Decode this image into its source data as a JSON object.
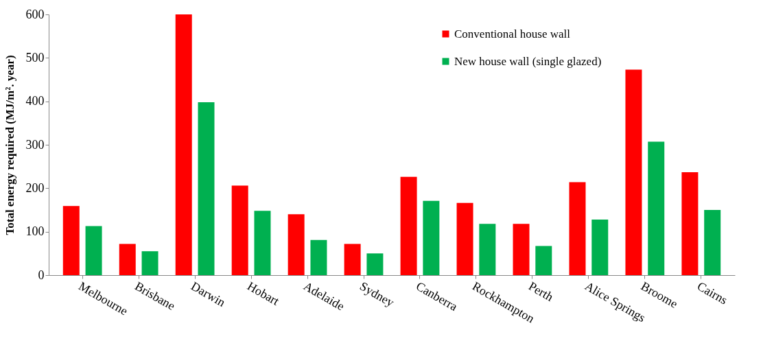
{
  "chart_data": {
    "type": "bar",
    "ylabel": "Total energy required (MJ/m². year)",
    "categories": [
      "Melbourne",
      "Brisbane",
      "Darwin",
      "Hobart",
      "Adelaide",
      "Sydney",
      "Canberra",
      "Rockhampton",
      "Perth",
      "Alice Springs",
      "Broome",
      "Cairns"
    ],
    "series": [
      {
        "name": "Conventional house wall",
        "color": "#ff0000",
        "values": [
          159,
          72,
          600,
          206,
          140,
          72,
          226,
          166,
          118,
          214,
          473,
          237
        ]
      },
      {
        "name": "New house wall (single glazed)",
        "color": "#00b050",
        "values": [
          113,
          55,
          398,
          148,
          81,
          50,
          171,
          118,
          67,
          128,
          307,
          150
        ]
      }
    ],
    "ylim": [
      0,
      600
    ],
    "yticks": [
      0,
      100,
      200,
      300,
      400,
      500,
      600
    ],
    "grid": false,
    "legend": "top"
  }
}
